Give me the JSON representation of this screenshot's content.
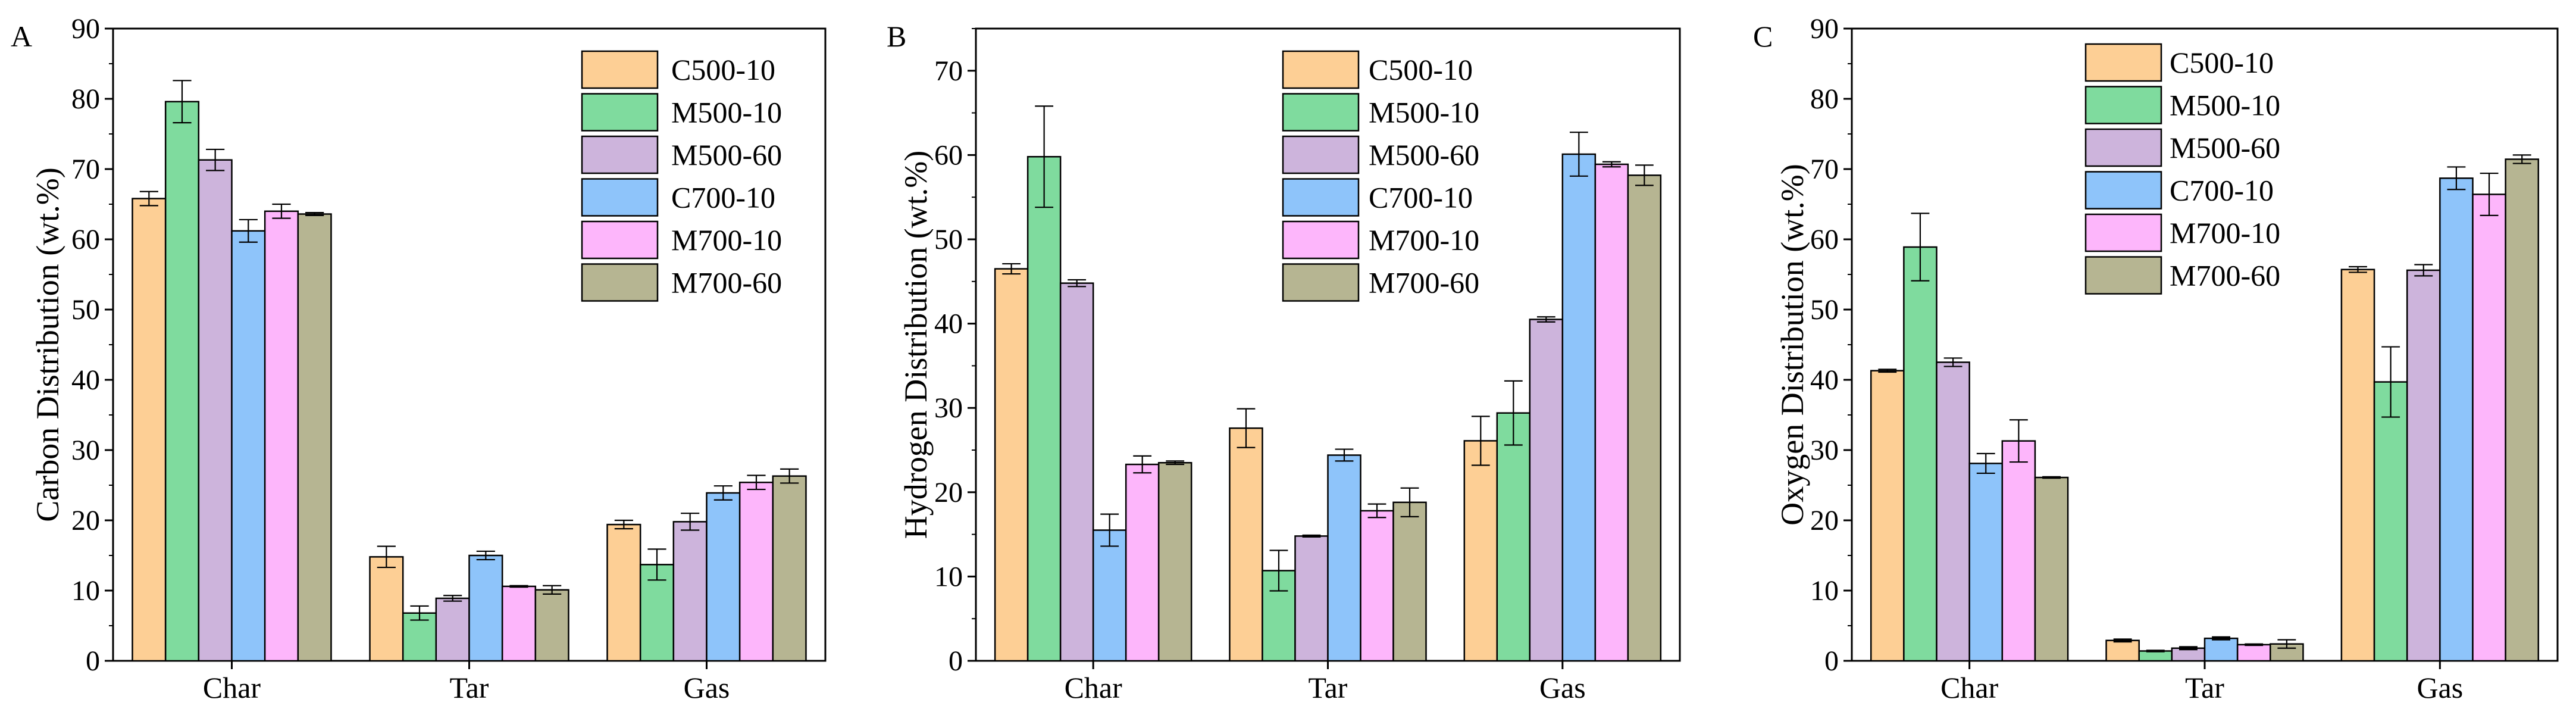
{
  "colors": {
    "C500-10": "#FDCF95",
    "M500-10": "#7FDB9E",
    "M500-60": "#CDB4DC",
    "C700-10": "#8EC4FA",
    "M700-10": "#FDB6FB",
    "M700-60": "#B6B592"
  },
  "chart_data": [
    {
      "panel": "A",
      "type": "bar",
      "ylabel": "Carbon Distribution (wt.%)",
      "ylim": [
        0,
        90
      ],
      "yticks": [
        0,
        10,
        20,
        30,
        40,
        50,
        60,
        70,
        80,
        90
      ],
      "categories": [
        "Char",
        "Tar",
        "Gas"
      ],
      "legend_position": "top-right",
      "series": [
        {
          "name": "C500-10",
          "values": [
            65.8,
            14.8,
            19.4
          ],
          "errors": [
            1.0,
            1.5,
            0.6
          ]
        },
        {
          "name": "M500-10",
          "values": [
            79.6,
            6.8,
            13.7
          ],
          "errors": [
            3.0,
            1.0,
            2.2
          ]
        },
        {
          "name": "M500-60",
          "values": [
            71.3,
            8.9,
            19.8
          ],
          "errors": [
            1.5,
            0.4,
            1.2
          ]
        },
        {
          "name": "C700-10",
          "values": [
            61.2,
            15.0,
            23.9
          ],
          "errors": [
            1.6,
            0.6,
            1.0
          ]
        },
        {
          "name": "M700-10",
          "values": [
            64.0,
            10.6,
            25.4
          ],
          "errors": [
            1.0,
            0.1,
            1.0
          ]
        },
        {
          "name": "M700-60",
          "values": [
            63.6,
            10.1,
            26.3
          ],
          "errors": [
            0.2,
            0.6,
            1.0
          ]
        }
      ]
    },
    {
      "panel": "B",
      "type": "bar",
      "ylabel": "Hydrogen Distribution (wt.%)",
      "ylim": [
        0,
        75
      ],
      "yticks": [
        0,
        10,
        20,
        30,
        40,
        50,
        60,
        70
      ],
      "categories": [
        "Char",
        "Tar",
        "Gas"
      ],
      "legend_position": "top-right",
      "series": [
        {
          "name": "C500-10",
          "values": [
            46.5,
            27.6,
            26.1
          ],
          "errors": [
            0.6,
            2.3,
            2.9
          ]
        },
        {
          "name": "M500-10",
          "values": [
            59.8,
            10.7,
            29.4
          ],
          "errors": [
            6.0,
            2.4,
            3.8
          ]
        },
        {
          "name": "M500-60",
          "values": [
            44.8,
            14.8,
            40.5
          ],
          "errors": [
            0.4,
            0.1,
            0.3
          ]
        },
        {
          "name": "C700-10",
          "values": [
            15.5,
            24.4,
            60.1
          ],
          "errors": [
            1.9,
            0.7,
            2.6
          ]
        },
        {
          "name": "M700-10",
          "values": [
            23.3,
            17.8,
            58.9
          ],
          "errors": [
            1.0,
            0.8,
            0.3
          ]
        },
        {
          "name": "M700-60",
          "values": [
            23.5,
            18.8,
            57.6
          ],
          "errors": [
            0.2,
            1.7,
            1.2
          ]
        }
      ]
    },
    {
      "panel": "C",
      "type": "bar",
      "ylabel": "Oxygen Distribution (wt.%)",
      "ylim": [
        0,
        90
      ],
      "yticks": [
        0,
        10,
        20,
        30,
        40,
        50,
        60,
        70,
        80,
        90
      ],
      "categories": [
        "Char",
        "Tar",
        "Gas"
      ],
      "legend_position": "top-right",
      "series": [
        {
          "name": "C500-10",
          "values": [
            41.3,
            2.9,
            55.7
          ],
          "errors": [
            0.2,
            0.2,
            0.4
          ]
        },
        {
          "name": "M500-10",
          "values": [
            58.9,
            1.4,
            39.7
          ],
          "errors": [
            4.8,
            0.1,
            5.0
          ]
        },
        {
          "name": "M500-60",
          "values": [
            42.5,
            1.8,
            55.6
          ],
          "errors": [
            0.6,
            0.2,
            0.8
          ]
        },
        {
          "name": "C700-10",
          "values": [
            28.1,
            3.2,
            68.7
          ],
          "errors": [
            1.4,
            0.2,
            1.6
          ]
        },
        {
          "name": "M700-10",
          "values": [
            31.3,
            2.3,
            66.4
          ],
          "errors": [
            3.0,
            0.1,
            3.0
          ]
        },
        {
          "name": "M700-60",
          "values": [
            26.1,
            2.4,
            71.4
          ],
          "errors": [
            0.1,
            0.6,
            0.6
          ]
        }
      ]
    }
  ]
}
